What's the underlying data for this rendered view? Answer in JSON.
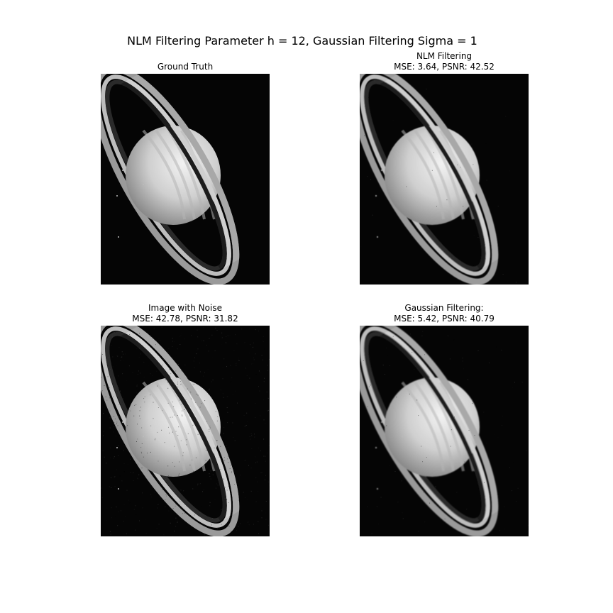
{
  "figure": {
    "suptitle": "NLM Filtering Parameter h = 12, Gaussian Filtering Sigma = 1"
  },
  "panels": [
    {
      "title_line1": "Ground Truth",
      "title_line2": "",
      "noise": 0.0,
      "blur": 0.0
    },
    {
      "title_line1": "NLM Filtering",
      "title_line2": "MSE: 3.64, PSNR: 42.52",
      "noise": 0.02,
      "blur": 0.5
    },
    {
      "title_line1": "Image with Noise",
      "title_line2": "MSE: 42.78, PSNR: 31.82",
      "noise": 0.35,
      "blur": 0.0
    },
    {
      "title_line1": "Gaussian Filtering:",
      "title_line2": "MSE: 5.42, PSNR: 40.79",
      "noise": 0.05,
      "blur": 0.8
    }
  ]
}
